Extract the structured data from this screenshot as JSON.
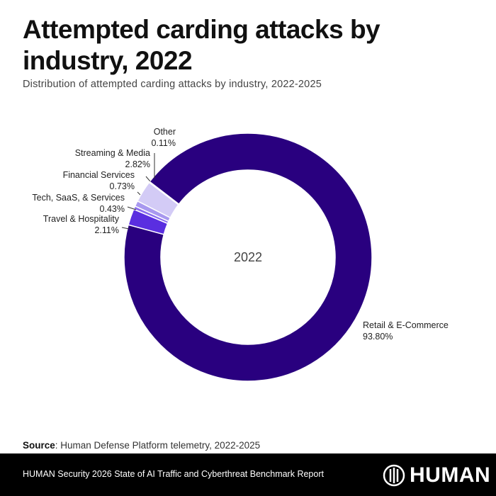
{
  "title": "Attempted carding attacks by industry, 2022",
  "subtitle": "Distribution of attempted carding attacks by industry, 2022-2025",
  "source_label": "Source",
  "source_text": ": Human Defense Platform telemetry, 2022-2025",
  "footer": "HUMAN Security 2026 State of AI Traffic and Cyberthreat Benchmark Report",
  "logo": "HUMAN",
  "chart_data": {
    "type": "pie",
    "title": "Attempted carding attacks by industry, 2022",
    "center_label": "2022",
    "start_angle_deg": -52.5,
    "slices": [
      {
        "label": "Retail & E-Commerce",
        "value": 93.8,
        "display": "93.80%",
        "color": "#29007f"
      },
      {
        "label": "Travel & Hospitality",
        "value": 2.11,
        "display": "2.11%",
        "color": "#5a2ee0"
      },
      {
        "label": "Tech, SaaS, & Services",
        "value": 0.43,
        "display": "0.43%",
        "color": "#8b6df0"
      },
      {
        "label": "Financial Services",
        "value": 0.73,
        "display": "0.73%",
        "color": "#a898ef"
      },
      {
        "label": "Streaming & Media",
        "value": 2.82,
        "display": "2.82%",
        "color": "#d3cbf6"
      },
      {
        "label": "Other",
        "value": 0.11,
        "display": "0.11%",
        "color": "#3a2a6a"
      }
    ]
  }
}
